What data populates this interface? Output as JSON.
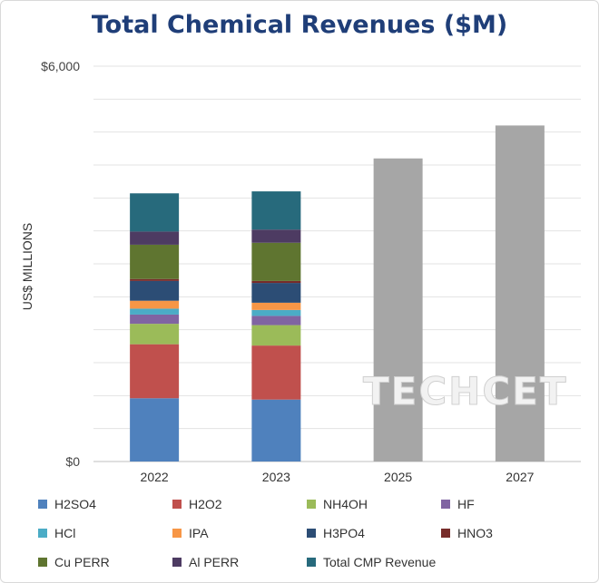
{
  "watermark": "TECHCET",
  "chart_data": {
    "type": "bar",
    "stacked": true,
    "title": "Total Chemical Revenues ($M)",
    "ylabel": "US$ MILLIONS",
    "xlabel": "",
    "ylim": [
      0,
      6000
    ],
    "y_tick_labels": [
      {
        "value": 0,
        "label": "$0"
      },
      {
        "value": 6000,
        "label": "$6,000"
      }
    ],
    "grid": true,
    "legend_position": "bottom",
    "categories": [
      "2022",
      "2023",
      "2025",
      "2027"
    ],
    "series": [
      {
        "name": "H2SO4",
        "color": "#4f81bd",
        "values": [
          960,
          940,
          null,
          null
        ]
      },
      {
        "name": "H2O2",
        "color": "#c0504d",
        "values": [
          820,
          820,
          null,
          null
        ]
      },
      {
        "name": "NH4OH",
        "color": "#9bbb59",
        "values": [
          310,
          310,
          null,
          null
        ]
      },
      {
        "name": "HF",
        "color": "#8064a2",
        "values": [
          140,
          140,
          null,
          null
        ]
      },
      {
        "name": "HCl",
        "color": "#4bacc6",
        "values": [
          90,
          90,
          null,
          null
        ]
      },
      {
        "name": "IPA",
        "color": "#f79646",
        "values": [
          120,
          110,
          null,
          null
        ]
      },
      {
        "name": "H3PO4",
        "color": "#2c4d75",
        "values": [
          300,
          300,
          null,
          null
        ]
      },
      {
        "name": "HNO3",
        "color": "#772c2a",
        "values": [
          30,
          30,
          null,
          null
        ]
      },
      {
        "name": "Cu PERR",
        "color": "#5f7530",
        "values": [
          520,
          580,
          null,
          null
        ]
      },
      {
        "name": "Al PERR",
        "color": "#4d3b62",
        "values": [
          200,
          200,
          null,
          null
        ]
      },
      {
        "name": "Total CMP Revenue",
        "color": "#276a7c",
        "values": [
          580,
          580,
          null,
          null
        ]
      },
      {
        "name": "",
        "color": "#a6a6a6",
        "values": [
          null,
          null,
          4600,
          5100
        ]
      }
    ]
  }
}
